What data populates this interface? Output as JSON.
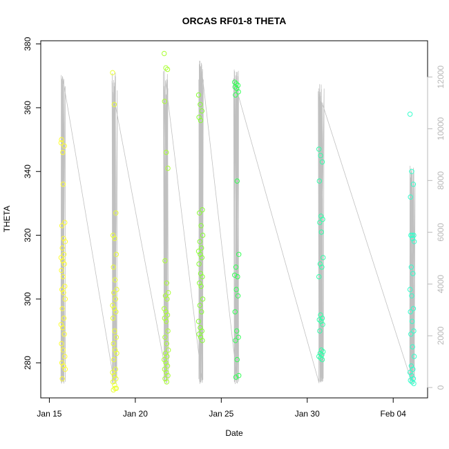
{
  "chart_data": {
    "type": "scatter",
    "title": "ORCAS RF01-8 THETA",
    "xlabel": "Date",
    "ylabel": "THETA",
    "y_right_label": "",
    "xlim": [
      -0.5,
      22.0
    ],
    "ylim": [
      269,
      381
    ],
    "y2lim": [
      -400,
      13400
    ],
    "x_ticks": [
      {
        "value": 0,
        "label": "Jan 15"
      },
      {
        "value": 5,
        "label": "Jan 20"
      },
      {
        "value": 10,
        "label": "Jan 25"
      },
      {
        "value": 15,
        "label": "Jan 30"
      },
      {
        "value": 20,
        "label": "Feb 04"
      }
    ],
    "y_ticks": [
      280,
      300,
      320,
      340,
      360,
      380
    ],
    "y2_ticks": [
      0,
      2000,
      4000,
      6000,
      8000,
      10000,
      12000
    ],
    "colors": {
      "altitude_line": "#c0c0c0",
      "right_axis": "#b8b8b8",
      "flight_colors": [
        "#ffff33",
        "#eaff33",
        "#aaff33",
        "#88ff33",
        "#33ff55",
        "#33ffaa",
        "#33ffcc",
        "#33ffdd"
      ]
    },
    "series": [
      {
        "date": "Jan 15",
        "x": 0.8,
        "y": [
          349,
          346,
          348,
          350,
          336,
          324,
          323,
          319,
          318,
          316,
          314,
          313,
          312,
          311,
          309,
          307,
          304,
          303,
          302,
          300,
          297,
          294,
          292,
          291,
          289,
          286,
          284,
          282,
          280,
          279,
          278,
          275
        ]
      },
      {
        "date": "Jan 18",
        "x": 3.8,
        "y": [
          371,
          361,
          327,
          320,
          319,
          314,
          310,
          306,
          303,
          302,
          300,
          298,
          297,
          296,
          294,
          290,
          288,
          286,
          284,
          283,
          281,
          278,
          277,
          276,
          275,
          274,
          273,
          272,
          271.5,
          272
        ]
      },
      {
        "date": "Jan 21",
        "x": 6.8,
        "y": [
          377,
          372.5,
          372,
          362,
          346,
          341,
          312,
          305,
          302,
          301,
          300,
          297,
          296,
          295,
          294,
          293,
          290,
          288,
          286,
          284,
          283,
          282,
          281,
          280,
          279,
          278,
          277,
          276,
          275,
          274
        ]
      },
      {
        "date": "Jan 23",
        "x": 8.8,
        "y": [
          364,
          361,
          359,
          357,
          356,
          328,
          327,
          323,
          320,
          318,
          316,
          315,
          314,
          313,
          311,
          308,
          307,
          305,
          304,
          300,
          298,
          296,
          293,
          291,
          290,
          289,
          288,
          287
        ]
      },
      {
        "date": "Jan 25",
        "x": 10.9,
        "y": [
          368,
          367.5,
          367,
          366.5,
          366,
          365,
          364,
          337,
          314,
          310,
          307,
          307.5,
          303,
          301,
          296,
          290,
          288,
          287,
          281,
          276,
          275.5
        ]
      },
      {
        "date": "Jan 30",
        "x": 15.8,
        "y": [
          347,
          345,
          343,
          337,
          326,
          325,
          324,
          321,
          313,
          311,
          310,
          307,
          295,
          294,
          293.5,
          293,
          292,
          290,
          284,
          283.5,
          283,
          282.5,
          282,
          281.5,
          281
        ]
      },
      {
        "date": "Feb 05",
        "x": 21.1,
        "y": [
          358,
          340,
          336,
          332,
          320,
          320,
          320,
          319,
          318,
          310,
          308,
          303,
          301,
          297,
          296,
          293,
          290,
          289,
          285,
          282,
          279,
          278,
          277,
          276,
          275,
          274.5,
          274,
          273.5
        ]
      }
    ]
  }
}
